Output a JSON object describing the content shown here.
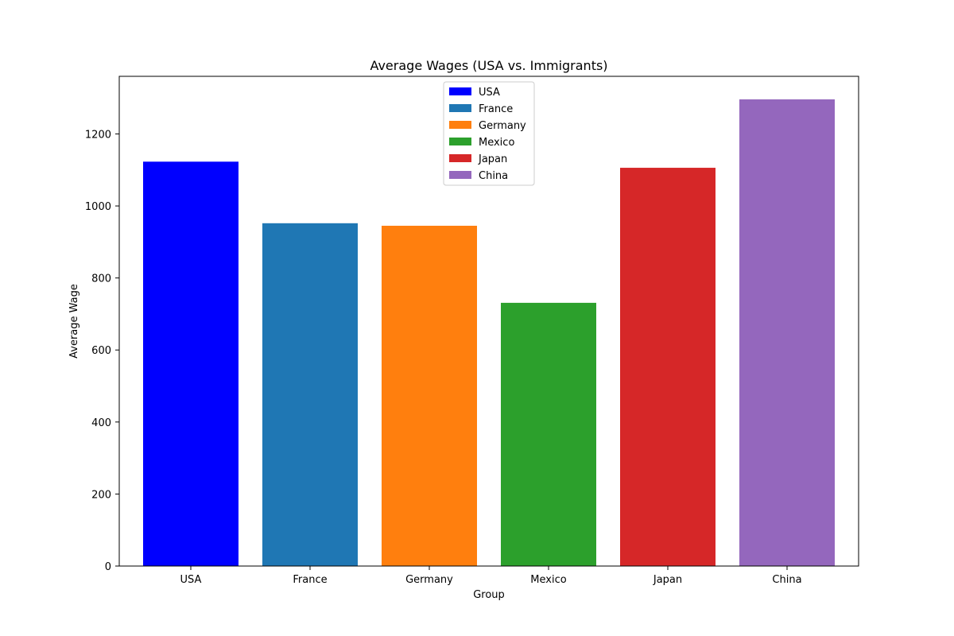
{
  "chart_data": {
    "type": "bar",
    "title": "Average Wages (USA vs. Immigrants)",
    "xlabel": "Group",
    "ylabel": "Average Wage",
    "categories": [
      "USA",
      "France",
      "Germany",
      "Mexico",
      "Japan",
      "China"
    ],
    "values": [
      1123,
      952,
      945,
      731,
      1106,
      1296
    ],
    "colors": [
      "#0000ff",
      "#1f77b4",
      "#ff7f0e",
      "#2ca02c",
      "#d62728",
      "#9467bd"
    ],
    "ylim": [
      0,
      1360
    ],
    "yticks": [
      0,
      200,
      400,
      600,
      800,
      1000,
      1200
    ],
    "grid": false,
    "legend": {
      "placement": "top-center",
      "entries": [
        "USA",
        "France",
        "Germany",
        "Mexico",
        "Japan",
        "China"
      ]
    }
  }
}
